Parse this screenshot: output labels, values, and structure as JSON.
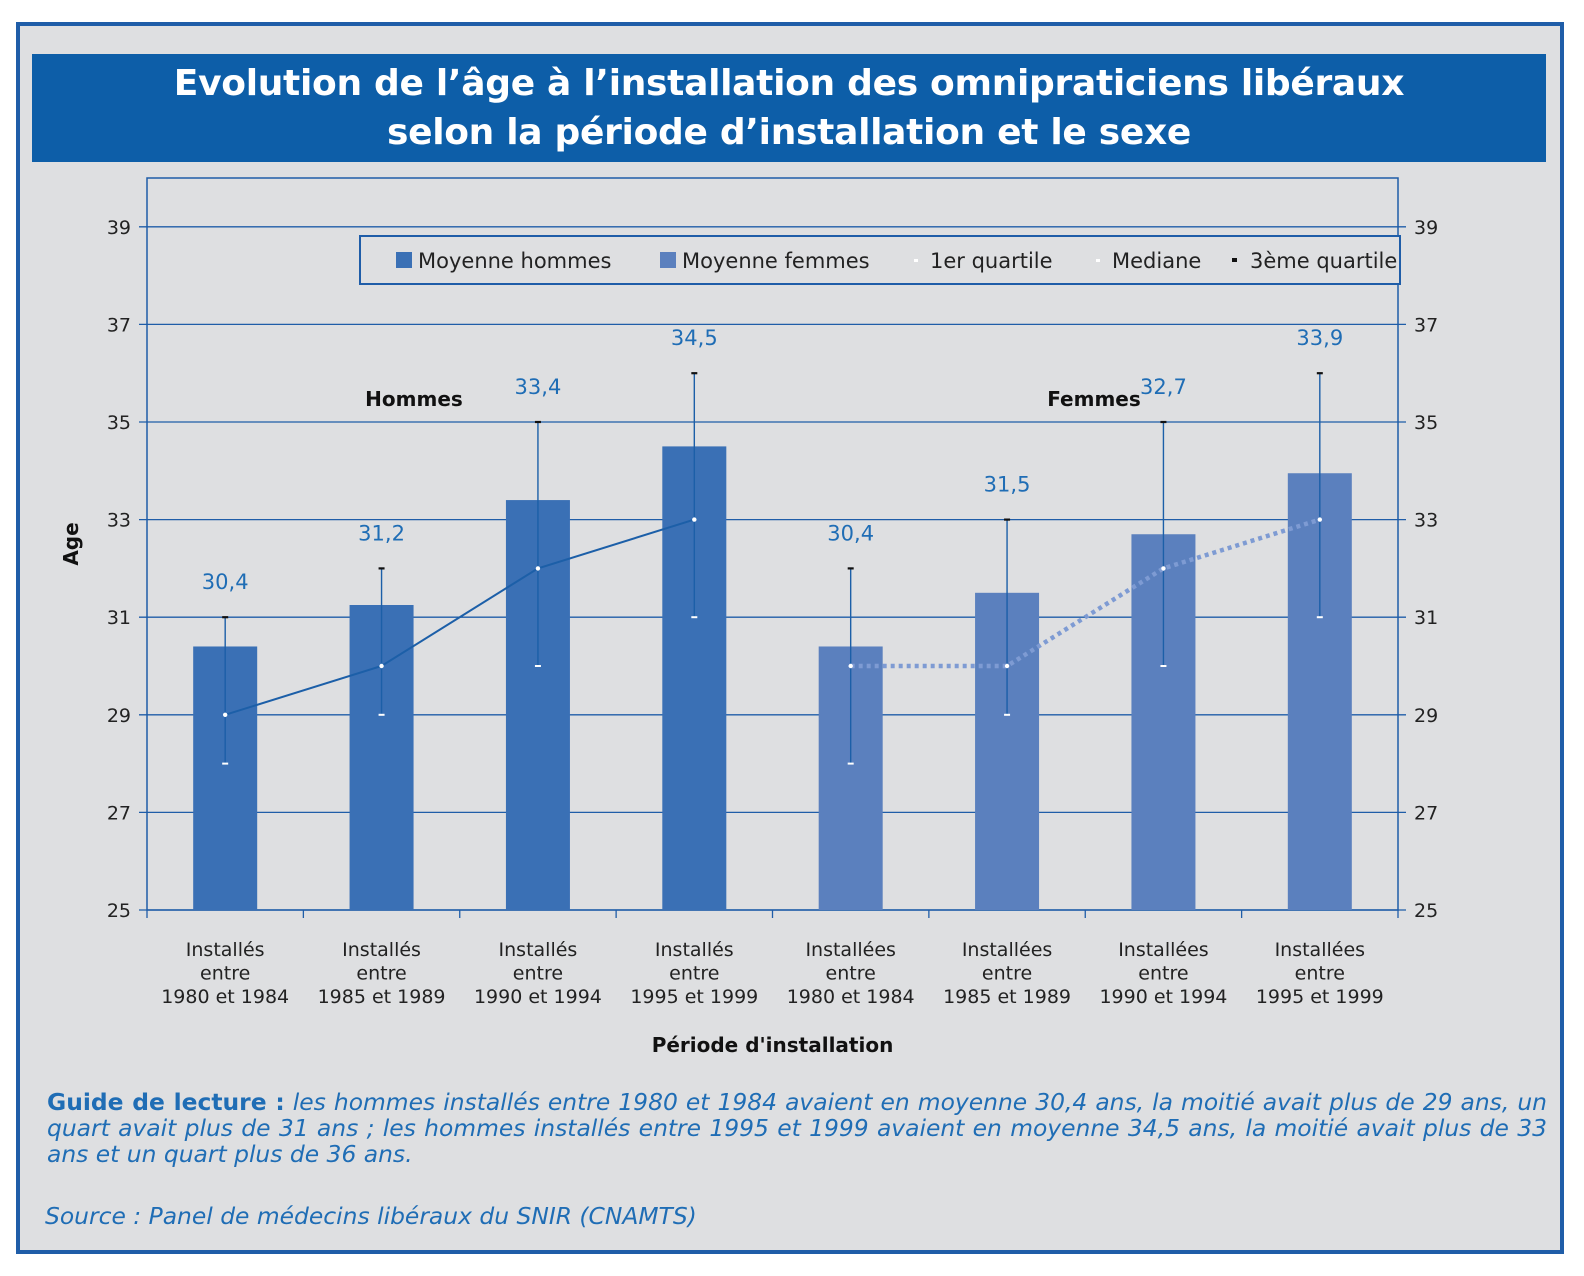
{
  "title": {
    "line1": "Evolution de l’âge à l’installation des omnipraticiens libéraux",
    "line2": "selon la période d’installation et le sexe"
  },
  "colors": {
    "frame": "#1f5da8",
    "background": "#dedfe1",
    "title_band": "#0d5ea8",
    "bar_hommes": "#3a70b5",
    "bar_femmes": "#5b80be",
    "text_blue": "#1f6db5",
    "gridline": "#1f5da8"
  },
  "chart_data": {
    "type": "bar",
    "ylabel": "Age",
    "xlabel": "Période d'installation",
    "ylim": [
      25,
      40
    ],
    "yticks": [
      25,
      27,
      29,
      31,
      33,
      35,
      37,
      39
    ],
    "grid": true,
    "legend_position": "top-right",
    "legend": [
      "Moyenne hommes",
      "Moyenne femmes",
      "1er quartile",
      "Mediane",
      "3ème quartile"
    ],
    "group_labels": [
      "Hommes",
      "Femmes"
    ],
    "categories": [
      [
        "Installés",
        "entre",
        "1980 et 1984"
      ],
      [
        "Installés",
        "entre",
        "1985 et 1989"
      ],
      [
        "Installés",
        "entre",
        "1990 et 1994"
      ],
      [
        "Installés",
        "entre",
        "1995 et 1999"
      ],
      [
        "Installées",
        "entre",
        "1980 et 1984"
      ],
      [
        "Installées",
        "entre",
        "1985 et 1989"
      ],
      [
        "Installées",
        "entre",
        "1990 et 1994"
      ],
      [
        "Installées",
        "entre",
        "1995 et 1999"
      ]
    ],
    "series": [
      {
        "name": "Moyenne hommes",
        "values": [
          30.4,
          31.25,
          33.4,
          34.5,
          null,
          null,
          null,
          null
        ],
        "labels": [
          "30,4",
          "31,2",
          "33,4",
          "34,5",
          "",
          "",
          "",
          ""
        ]
      },
      {
        "name": "Moyenne femmes",
        "values": [
          null,
          null,
          null,
          null,
          30.4,
          31.5,
          32.7,
          33.95
        ],
        "labels": [
          "",
          "",
          "",
          "",
          "30,4",
          "31,5",
          "32,7",
          "33,9"
        ]
      },
      {
        "name": "1er quartile",
        "values": [
          28,
          29,
          30,
          31,
          28,
          29,
          30,
          31
        ]
      },
      {
        "name": "Mediane",
        "values": [
          29,
          30,
          32,
          33,
          30,
          30,
          32,
          33
        ]
      },
      {
        "name": "3ème quartile",
        "values": [
          31,
          32,
          35,
          36,
          32,
          33,
          35,
          36
        ]
      }
    ]
  },
  "footer": {
    "guide_label": "Guide de lecture :",
    "guide_text": " les hommes installés entre 1980 et 1984 avaient en moyenne 30,4 ans, la moitié avait plus de 29 ans, un quart avait plus de 31 ans ; les hommes installés entre 1995 et 1999 avaient en moyenne 34,5 ans, la moitié avait plus de 33 ans et un quart plus de 36 ans.",
    "source": "Source : Panel de médecins libéraux du SNIR (CNAMTS)"
  }
}
